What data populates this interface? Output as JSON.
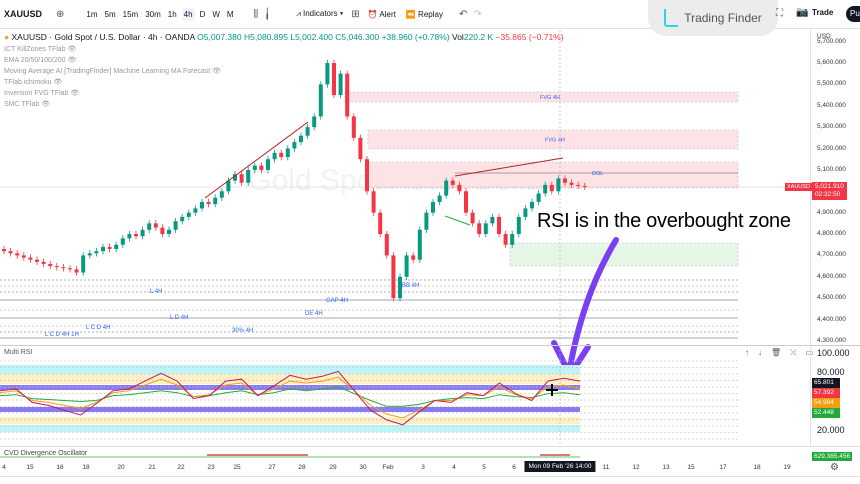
{
  "toolbar": {
    "symbol": "XAUUSD",
    "timeframes": [
      "1m",
      "5m",
      "15m",
      "30m",
      "1h",
      "4h",
      "D",
      "W",
      "M"
    ],
    "active_tf": "4h",
    "indicators": "Indicators",
    "alert": "Alert",
    "replay": "Replay",
    "trade": "Trade",
    "publish": "Pu"
  },
  "logo": {
    "text": "Trading Finder",
    "color": "#2ed3e6"
  },
  "legend": {
    "title": "XAUUSD · Gold Spot / U.S. Dollar · 4h · OANDA",
    "open": "O5,007.380",
    "high": "H5,080.895",
    "low": "L5,002.400",
    "close": "C5,046.300",
    "change": "+38.960 (+0.78%)",
    "vol_label": "Vol",
    "vol": "220.2 K",
    "vol_change": "−35.865 (−0.71%)",
    "indicators": [
      "ICT KillZones TFlab",
      "EMA 20/50/100/200",
      "Moving Average AI [TradingFinder] Machine Learning MA Forecast",
      "TFlab ichimoku",
      "Inversion FVG TFlab",
      "SMC TFlab"
    ]
  },
  "watermark": "Gold Spot / U.S. Dollar",
  "price_axis": {
    "currency": "USD",
    "ticks": [
      "5,700.000",
      "5,600.000",
      "5,500.000",
      "5,400.000",
      "5,300.000",
      "5,200.000",
      "5,100.000",
      "4,900.000",
      "4,800.000",
      "4,700.000",
      "4,600.000",
      "4,500.000",
      "4,400.000",
      "4,300.000"
    ],
    "symbol_tag": "XAUUSD",
    "last_price": "5,021.910",
    "countdown": "02:32:50"
  },
  "candles_close": [
    4720,
    4710,
    4700,
    4690,
    4680,
    4670,
    4660,
    4650,
    4645,
    4640,
    4635,
    4620,
    4700,
    4710,
    4720,
    4740,
    4730,
    4750,
    4780,
    4800,
    4790,
    4820,
    4850,
    4830,
    4800,
    4820,
    4860,
    4880,
    4900,
    4920,
    4950,
    4940,
    4970,
    5000,
    5050,
    5080,
    5040,
    5100,
    5120,
    5100,
    5150,
    5180,
    5160,
    5200,
    5230,
    5260,
    5300,
    5350,
    5500,
    5600,
    5450,
    5550,
    5350,
    5250,
    5150,
    5000,
    4900,
    4800,
    4700,
    4500,
    4600,
    4700,
    4680,
    4820,
    4900,
    4950,
    4980,
    5050,
    5030,
    5000,
    4900,
    4850,
    4800,
    4850,
    4880,
    4800,
    4750,
    4800,
    4880,
    4920,
    4950,
    4990,
    5030,
    5000,
    5060,
    5040,
    5030,
    5025,
    5021
  ],
  "zones": {
    "fvg1": "FVG 4H",
    "fvg2": "FVG 4H",
    "dol": "DOL",
    "bb": "BB 4H",
    "l4h": "L 4H",
    "gap": "GAP 4H",
    "de": "DE 4H",
    "ld": "L D 4H",
    "lcd": "L C D 4H",
    "pct": "30% 4H",
    "lcd1h": "L C D 4H 1H"
  },
  "annotation": "RSI is in the overbought zone",
  "annotation_color": "#7b3ff2",
  "rsi": {
    "title": "Multi RSI",
    "axis": [
      "100.000",
      "80.000",
      "20.000"
    ],
    "values": [
      {
        "v": "65.801",
        "color": "#131722"
      },
      {
        "v": "57.392",
        "color": "#f23645"
      },
      {
        "v": "54.984",
        "color": "#f59d0b"
      },
      {
        "v": "52.448",
        "color": "#22ab3a"
      }
    ],
    "red": [
      60,
      62,
      48,
      45,
      40,
      35,
      47,
      60,
      62,
      70,
      78,
      70,
      52,
      55,
      70,
      72,
      55,
      65,
      76,
      72,
      75,
      80,
      60,
      40,
      30,
      25,
      38,
      50,
      48,
      58,
      55,
      68,
      57,
      50,
      70,
      73,
      70
    ],
    "orange": [
      58,
      60,
      50,
      48,
      45,
      42,
      48,
      58,
      60,
      66,
      72,
      66,
      54,
      56,
      66,
      68,
      55,
      62,
      70,
      68,
      70,
      74,
      60,
      45,
      36,
      32,
      40,
      50,
      50,
      56,
      55,
      64,
      56,
      52,
      64,
      66,
      62
    ],
    "green": [
      55,
      56,
      52,
      51,
      50,
      49,
      50,
      55,
      56,
      58,
      60,
      58,
      54,
      55,
      58,
      60,
      56,
      58,
      62,
      60,
      62,
      64,
      57,
      50,
      44,
      44,
      46,
      50,
      52,
      53,
      52,
      56,
      54,
      53,
      57,
      58,
      56
    ]
  },
  "cvd": {
    "title": "CVD Divergence Oscillator",
    "value": "629,385.456"
  },
  "time_axis": [
    "4",
    "15",
    "16",
    "18",
    "20",
    "21",
    "22",
    "23",
    "25",
    "27",
    "28",
    "29",
    "30",
    "Feb",
    "3",
    "4",
    "5",
    "6",
    "11",
    "12",
    "13",
    "15",
    "17",
    "18",
    "19"
  ],
  "cursor_date": "Mon 09 Feb '26  14:00"
}
